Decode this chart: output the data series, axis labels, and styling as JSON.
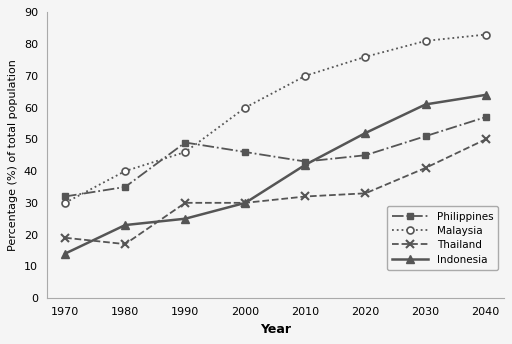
{
  "years": [
    1970,
    1980,
    1990,
    2000,
    2010,
    2020,
    2030,
    2040
  ],
  "philippines": [
    32,
    35,
    49,
    46,
    43,
    45,
    51,
    57
  ],
  "malaysia": [
    30,
    40,
    46,
    60,
    70,
    76,
    81,
    83
  ],
  "thailand": [
    19,
    17,
    30,
    30,
    32,
    33,
    41,
    50
  ],
  "indonesia": [
    14,
    23,
    25,
    30,
    42,
    52,
    61,
    64
  ],
  "xlabel": "Year",
  "ylabel": "Percentage (%) of total population",
  "ylim": [
    0,
    90
  ],
  "yticks": [
    0,
    10,
    20,
    30,
    40,
    50,
    60,
    70,
    80,
    90
  ],
  "xticks": [
    1970,
    1980,
    1990,
    2000,
    2010,
    2020,
    2030,
    2040
  ],
  "line_color": "#555555",
  "bg_color": "#f5f5f5",
  "legend_labels": [
    "Philippines",
    "Malaysia",
    "Thailand",
    "Indonesia"
  ]
}
